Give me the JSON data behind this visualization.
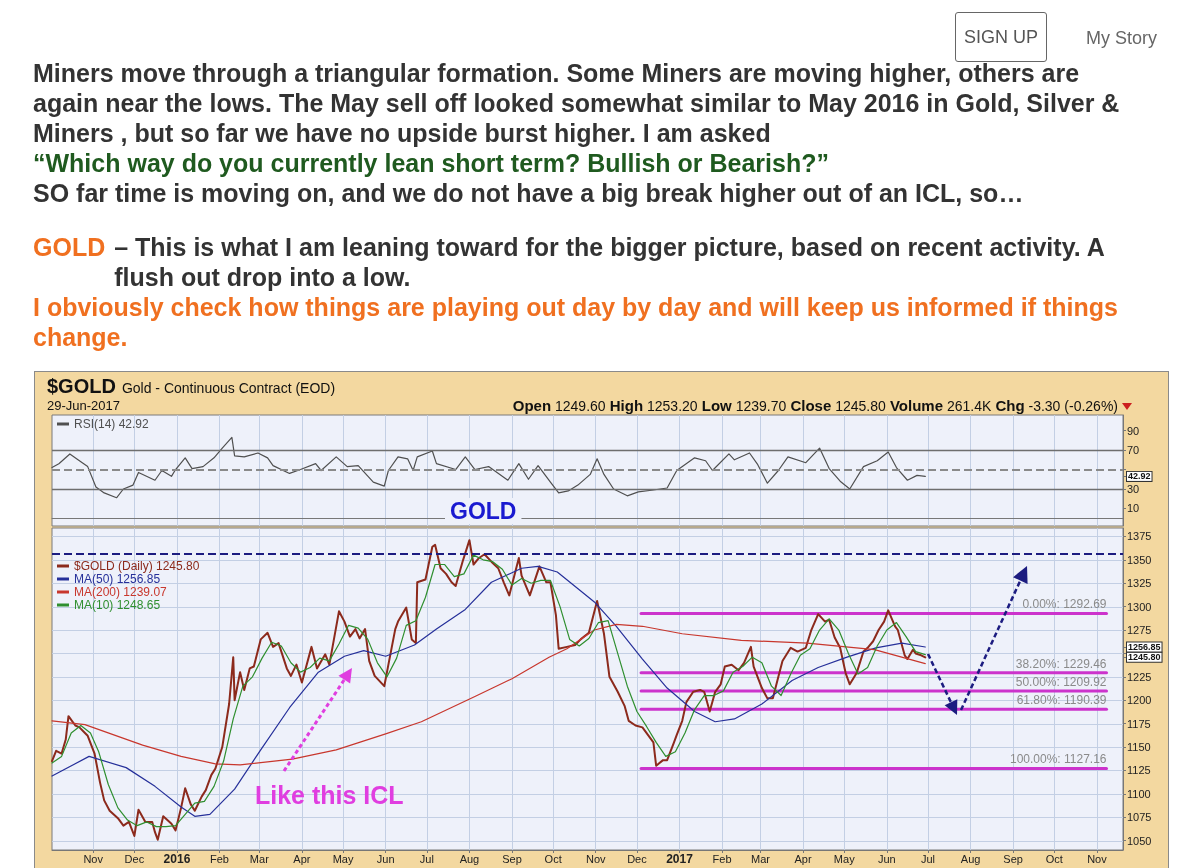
{
  "chart_data": [
    {
      "type": "line",
      "title": "$GOLD",
      "subtitle": "Gold - Continuous Contract (EOD)",
      "annotations": [
        "SIGN UP",
        "My Story",
        "Miners move through a triangular formation. Some Miners are moving higher, others are again near the lows. The May sell off looked somewhat similar to May 2016 in Gold, Silver & Miners , but so far we have no upside burst higher. I am asked",
        "“Which way do you currently lean short term? Bullish or Bearish?”",
        "SO far time is moving on, and we do not have a big break higher out of an ICL, so…",
        "GOLD",
        "– This is what I am leaning toward for the bigger picture, based on recent activity. A flush out drop into a low.",
        "I obviously check how things are playing out day by day and will keep us informed if things change.",
        "29-Jun-2017",
        "Open 1249.60 High 1253.20 Low 1239.70 Close 1245.80 Volume 261.4K Chg -3.30 (-0.26%)"
      ],
      "xlim": [
        "2015-10-02",
        "2017-11-20"
      ],
      "xticks": [
        {
          "value": "2015-11-01",
          "label": null
        },
        {
          "value": "2015-12-01",
          "label": null
        },
        {
          "value": "2016-01-01",
          "label": null
        },
        {
          "value": "2016-02-01",
          "label": null
        },
        {
          "value": "2016-03-01",
          "label": null
        },
        {
          "value": "2016-04-01",
          "label": null
        },
        {
          "value": "2016-05-01",
          "label": null
        },
        {
          "value": "2016-06-01",
          "label": null
        },
        {
          "value": "2016-07-01",
          "label": null
        },
        {
          "value": "2016-08-01",
          "label": null
        },
        {
          "value": "2016-09-01",
          "label": null
        },
        {
          "value": "2016-10-01",
          "label": null
        },
        {
          "value": "2016-11-01",
          "label": null
        },
        {
          "value": "2016-12-01",
          "label": null
        },
        {
          "value": "2017-01-01",
          "label": null
        },
        {
          "value": "2017-02-01",
          "label": null
        },
        {
          "value": "2017-03-01",
          "label": null
        },
        {
          "value": "2017-04-01",
          "label": null
        },
        {
          "value": "2017-05-01",
          "label": null
        },
        {
          "value": "2017-06-01",
          "label": null
        },
        {
          "value": "2017-07-01",
          "label": null
        },
        {
          "value": "2017-08-01",
          "label": null
        },
        {
          "value": "2017-09-01",
          "label": null
        },
        {
          "value": "2017-10-01",
          "label": null
        },
        {
          "value": "2017-11-01",
          "label": null
        }
      ],
      "ylim": [
        -8,
        106
      ],
      "yticks": [
        10,
        30,
        {
          "value": 42.92,
          "label": "42.92"
        },
        {
          "value": 50,
          "label": null
        },
        70,
        90
      ],
      "tick_labels": "y",
      "grid": "x",
      "legend": "top left",
      "marker": "none",
      "ref_lines": [
        {
          "axis": "y",
          "value": 70,
          "color": "#6e6e6e"
        },
        {
          "axis": "y",
          "value": 50,
          "color": "#8a8a8a",
          "line_style": "dashed"
        },
        {
          "axis": "y",
          "value": 30,
          "color": "#6e6e6e"
        }
      ],
      "series": [
        {
          "name": "RSI(14) 42.92",
          "color": "#505050",
          "x": [
            "2015-10-02",
            "2015-10-07",
            "2015-10-15",
            "2015-10-23",
            "2015-10-28",
            "2015-11-03",
            "2015-11-09",
            "2015-11-18",
            "2015-11-23",
            "2015-11-30",
            "2015-12-04",
            "2015-12-16",
            "2015-12-21",
            "2015-12-28",
            "2015-12-31",
            "2016-01-07",
            "2016-01-12",
            "2016-01-20",
            "2016-01-28",
            "2016-02-03",
            "2016-02-10",
            "2016-02-12",
            "2016-02-19",
            "2016-02-29",
            "2016-03-07",
            "2016-03-11",
            "2016-03-23",
            "2016-03-31",
            "2016-04-11",
            "2016-04-15",
            "2016-04-26",
            "2016-05-04",
            "2016-05-12",
            "2016-05-23",
            "2016-05-31",
            "2016-06-03",
            "2016-06-10",
            "2016-06-17",
            "2016-06-21",
            "2016-06-24",
            "2016-07-05",
            "2016-07-08",
            "2016-07-22",
            "2016-07-29",
            "2016-08-05",
            "2016-08-15",
            "2016-08-29",
            "2016-09-06",
            "2016-09-13",
            "2016-09-20",
            "2016-09-29",
            "2016-10-05",
            "2016-10-12",
            "2016-10-19",
            "2016-10-28",
            "2016-11-02",
            "2016-11-07",
            "2016-11-14",
            "2016-11-24",
            "2016-12-02",
            "2016-12-13",
            "2016-12-23",
            "2016-12-30",
            "2017-01-12",
            "2017-01-20",
            "2017-01-25",
            "2017-02-06",
            "2017-02-10",
            "2017-02-21",
            "2017-02-27",
            "2017-03-06",
            "2017-03-14",
            "2017-03-21",
            "2017-04-03",
            "2017-04-13",
            "2017-04-20",
            "2017-04-28",
            "2017-05-05",
            "2017-05-15",
            "2017-05-25",
            "2017-06-02",
            "2017-06-08",
            "2017-06-16",
            "2017-06-23",
            "2017-06-29"
          ],
          "values": [
            52,
            56,
            66,
            58,
            53,
            32,
            26,
            21,
            30,
            34,
            47,
            39,
            49,
            43,
            50,
            62,
            51,
            53,
            62,
            72,
            83,
            64,
            63,
            67,
            62,
            54,
            46,
            50,
            56,
            49,
            63,
            53,
            54,
            37,
            33,
            49,
            63,
            61,
            49,
            63,
            69,
            56,
            50,
            63,
            50,
            53,
            39,
            56,
            40,
            54,
            37,
            26,
            28,
            34,
            45,
            61,
            45,
            30,
            23,
            27,
            29,
            31,
            49,
            62,
            59,
            49,
            66,
            60,
            67,
            55,
            36,
            49,
            63,
            57,
            72,
            51,
            38,
            30,
            53,
            59,
            68,
            52,
            39,
            44,
            42.92
          ]
        }
      ]
    },
    {
      "type": "line",
      "title": "GOLD",
      "annotations": [
        "Like this ICL"
      ],
      "xlim": [
        "2015-10-02",
        "2017-11-20"
      ],
      "xticks": [
        {
          "value": "2015-11-01",
          "label": "Nov"
        },
        {
          "value": "2015-12-01",
          "label": "Dec"
        },
        {
          "value": "2016-01-01",
          "label": "2016"
        },
        {
          "value": "2016-02-01",
          "label": "Feb"
        },
        {
          "value": "2016-03-01",
          "label": "Mar"
        },
        {
          "value": "2016-04-01",
          "label": "Apr"
        },
        {
          "value": "2016-05-01",
          "label": "May"
        },
        {
          "value": "2016-06-01",
          "label": "Jun"
        },
        {
          "value": "2016-07-01",
          "label": "Jul"
        },
        {
          "value": "2016-08-01",
          "label": "Aug"
        },
        {
          "value": "2016-09-01",
          "label": "Sep"
        },
        {
          "value": "2016-10-01",
          "label": "Oct"
        },
        {
          "value": "2016-11-01",
          "label": "Nov"
        },
        {
          "value": "2016-12-01",
          "label": "Dec"
        },
        {
          "value": "2017-01-01",
          "label": "2017"
        },
        {
          "value": "2017-02-01",
          "label": "Feb"
        },
        {
          "value": "2017-03-01",
          "label": "Mar"
        },
        {
          "value": "2017-04-01",
          "label": "Apr"
        },
        {
          "value": "2017-05-01",
          "label": "May"
        },
        {
          "value": "2017-06-01",
          "label": "Jun"
        },
        {
          "value": "2017-07-01",
          "label": "Jul"
        },
        {
          "value": "2017-08-01",
          "label": "Aug"
        },
        {
          "value": "2017-09-01",
          "label": "Sep"
        },
        {
          "value": "2017-10-01",
          "label": "Oct"
        },
        {
          "value": "2017-11-01",
          "label": "Nov"
        }
      ],
      "ylim": [
        1040,
        1384
      ],
      "yticks": [
        1050,
        1075,
        1100,
        1125,
        1150,
        1175,
        1200,
        1225,
        {
          "value": 1245.8,
          "label": "1245.80"
        },
        {
          "value": 1250,
          "label": null
        },
        {
          "value": 1256.85,
          "label": "1256.85"
        },
        1275,
        1300,
        1325,
        1350,
        1375
      ],
      "grid": true,
      "legend": "top left",
      "marker": "none",
      "ref_lines": [
        {
          "axis": "y",
          "value": 1357,
          "color": "#1c1c80",
          "line_style": "dashed"
        }
      ],
      "series": [
        {
          "name": "$GOLD (Daily) 1245.80",
          "color": "#8c2a1c",
          "x": [
            "2015-10-02",
            "2015-10-05",
            "2015-10-09",
            "2015-10-12",
            "2015-10-14",
            "2015-10-19",
            "2015-10-22",
            "2015-10-26",
            "2015-10-28",
            "2015-11-02",
            "2015-11-06",
            "2015-11-09",
            "2015-11-13",
            "2015-11-19",
            "2015-11-23",
            "2015-11-27",
            "2015-12-01",
            "2015-12-04",
            "2015-12-09",
            "2015-12-14",
            "2015-12-16",
            "2015-12-18",
            "2015-12-22",
            "2015-12-28",
            "2015-12-31",
            "2016-01-04",
            "2016-01-07",
            "2016-01-11",
            "2016-01-14",
            "2016-01-19",
            "2016-01-22",
            "2016-01-26",
            "2016-01-29",
            "2016-02-03",
            "2016-02-08",
            "2016-02-11",
            "2016-02-12",
            "2016-02-16",
            "2016-02-19",
            "2016-02-23",
            "2016-02-26",
            "2016-03-02",
            "2016-03-07",
            "2016-03-11",
            "2016-03-15",
            "2016-03-21",
            "2016-03-24",
            "2016-03-28",
            "2016-04-01",
            "2016-04-08",
            "2016-04-12",
            "2016-04-18",
            "2016-04-21",
            "2016-04-28",
            "2016-05-02",
            "2016-05-06",
            "2016-05-10",
            "2016-05-13",
            "2016-05-17",
            "2016-05-20",
            "2016-05-24",
            "2016-05-31",
            "2016-06-03",
            "2016-06-08",
            "2016-06-10",
            "2016-06-16",
            "2016-06-20",
            "2016-06-23",
            "2016-06-24",
            "2016-06-30",
            "2016-07-05",
            "2016-07-07",
            "2016-07-11",
            "2016-07-15",
            "2016-07-19",
            "2016-07-22",
            "2016-07-27",
            "2016-08-01",
            "2016-08-04",
            "2016-08-08",
            "2016-08-12",
            "2016-08-17",
            "2016-08-22",
            "2016-08-26",
            "2016-08-30",
            "2016-09-06",
            "2016-09-08",
            "2016-09-14",
            "2016-09-21",
            "2016-09-26",
            "2016-09-29",
            "2016-10-03",
            "2016-10-05",
            "2016-10-11",
            "2016-10-17",
            "2016-10-21",
            "2016-10-27",
            "2016-11-02",
            "2016-11-07",
            "2016-11-11",
            "2016-11-17",
            "2016-11-22",
            "2016-11-25",
            "2016-11-30",
            "2016-12-05",
            "2016-12-09",
            "2016-12-13",
            "2016-12-15",
            "2016-12-20",
            "2016-12-23",
            "2016-12-28",
            "2016-12-30",
            "2017-01-03",
            "2017-01-06",
            "2017-01-11",
            "2017-01-16",
            "2017-01-19",
            "2017-01-23",
            "2017-01-27",
            "2017-01-31",
            "2017-02-03",
            "2017-02-08",
            "2017-02-13",
            "2017-02-17",
            "2017-02-22",
            "2017-02-24",
            "2017-03-02",
            "2017-03-06",
            "2017-03-10",
            "2017-03-14",
            "2017-03-17",
            "2017-03-23",
            "2017-03-28",
            "2017-04-03",
            "2017-04-07",
            "2017-04-12",
            "2017-04-17",
            "2017-04-20",
            "2017-04-24",
            "2017-04-28",
            "2017-05-02",
            "2017-05-05",
            "2017-05-10",
            "2017-05-15",
            "2017-05-18",
            "2017-05-22",
            "2017-05-26",
            "2017-05-30",
            "2017-06-02",
            "2017-06-07",
            "2017-06-09",
            "2017-06-14",
            "2017-06-16",
            "2017-06-20",
            "2017-06-22",
            "2017-06-26",
            "2017-06-29"
          ],
          "values": [
            1135,
            1146,
            1143,
            1158,
            1183,
            1173,
            1171,
            1165,
            1162,
            1143,
            1112,
            1093,
            1082,
            1074,
            1066,
            1070,
            1055,
            1083,
            1070,
            1070,
            1059,
            1051,
            1076,
            1068,
            1061,
            1085,
            1106,
            1089,
            1082,
            1097,
            1104,
            1120,
            1127,
            1150,
            1196,
            1246,
            1200,
            1230,
            1211,
            1234,
            1236,
            1265,
            1272,
            1257,
            1261,
            1234,
            1226,
            1238,
            1219,
            1257,
            1234,
            1249,
            1238,
            1295,
            1284,
            1268,
            1276,
            1266,
            1276,
            1242,
            1226,
            1215,
            1238,
            1276,
            1284,
            1299,
            1265,
            1261,
            1326,
            1329,
            1364,
            1366,
            1341,
            1335,
            1326,
            1322,
            1348,
            1371,
            1345,
            1352,
            1356,
            1348,
            1341,
            1326,
            1312,
            1352,
            1333,
            1312,
            1343,
            1326,
            1326,
            1291,
            1255,
            1257,
            1259,
            1265,
            1272,
            1306,
            1271,
            1225,
            1209,
            1194,
            1178,
            1173,
            1171,
            1163,
            1155,
            1130,
            1136,
            1136,
            1155,
            1163,
            1178,
            1198,
            1209,
            1211,
            1209,
            1188,
            1209,
            1217,
            1236,
            1238,
            1232,
            1240,
            1257,
            1236,
            1213,
            1202,
            1202,
            1225,
            1242,
            1256,
            1252,
            1256,
            1275,
            1292,
            1284,
            1286,
            1267,
            1256,
            1229,
            1217,
            1229,
            1252,
            1256,
            1263,
            1275,
            1284,
            1296,
            1279,
            1275,
            1248,
            1244,
            1254,
            1250,
            1248,
            1245.8
          ]
        },
        {
          "name": "MA(50) 1256.85",
          "color": "#26309a",
          "x": [
            "2015-10-02",
            "2015-10-29",
            "2015-11-25",
            "2015-12-16",
            "2016-01-04",
            "2016-01-14",
            "2016-01-25",
            "2016-02-12",
            "2016-03-02",
            "2016-03-23",
            "2016-04-13",
            "2016-05-02",
            "2016-05-16",
            "2016-06-01",
            "2016-06-22",
            "2016-07-08",
            "2016-07-29",
            "2016-08-17",
            "2016-09-08",
            "2016-09-20",
            "2016-10-04",
            "2016-10-31",
            "2016-11-16",
            "2016-12-05",
            "2016-12-23",
            "2017-01-12",
            "2017-01-27",
            "2017-02-10",
            "2017-03-02",
            "2017-03-24",
            "2017-04-12",
            "2017-05-03",
            "2017-05-24",
            "2017-06-12",
            "2017-06-29"
          ],
          "values": [
            1119,
            1140,
            1128,
            1108,
            1086,
            1076,
            1078,
            1105,
            1147,
            1192,
            1230,
            1247,
            1253,
            1247,
            1259,
            1276,
            1297,
            1326,
            1341,
            1343,
            1337,
            1305,
            1279,
            1244,
            1213,
            1188,
            1177,
            1180,
            1196,
            1221,
            1235,
            1246,
            1256,
            1261,
            1256.85
          ]
        },
        {
          "name": "MA(200) 1239.07",
          "color": "#c8372d",
          "x": [
            "2015-10-02",
            "2015-10-26",
            "2015-12-07",
            "2016-01-04",
            "2016-01-29",
            "2016-02-16",
            "2016-03-25",
            "2016-04-26",
            "2016-06-01",
            "2016-06-27",
            "2016-08-05",
            "2016-09-01",
            "2016-09-28",
            "2016-10-11",
            "2016-10-31",
            "2016-11-16",
            "2016-12-05",
            "2017-01-03",
            "2017-02-15",
            "2017-04-04",
            "2017-05-23",
            "2017-06-29"
          ],
          "values": [
            1178,
            1174,
            1152,
            1140,
            1132,
            1131,
            1137,
            1147,
            1164,
            1177,
            1204,
            1223,
            1246,
            1255,
            1275,
            1281,
            1279,
            1271,
            1264,
            1261,
            1254,
            1239.07
          ]
        },
        {
          "name": "MA(10) 1248.65",
          "color": "#2f8f2f",
          "x": [
            "2015-10-02",
            "2015-10-09",
            "2015-10-16",
            "2015-10-23",
            "2015-10-30",
            "2015-11-05",
            "2015-11-12",
            "2015-11-19",
            "2015-11-26",
            "2015-12-03",
            "2015-12-10",
            "2015-12-17",
            "2015-12-24",
            "2015-12-31",
            "2016-01-07",
            "2016-01-14",
            "2016-01-21",
            "2016-01-28",
            "2016-02-04",
            "2016-02-11",
            "2016-02-18",
            "2016-02-25",
            "2016-03-03",
            "2016-03-10",
            "2016-03-17",
            "2016-03-24",
            "2016-03-31",
            "2016-04-07",
            "2016-04-14",
            "2016-04-21",
            "2016-04-28",
            "2016-05-05",
            "2016-05-12",
            "2016-05-19",
            "2016-05-26",
            "2016-06-02",
            "2016-06-09",
            "2016-06-16",
            "2016-06-23",
            "2016-06-30",
            "2016-07-07",
            "2016-07-14",
            "2016-07-21",
            "2016-07-28",
            "2016-08-04",
            "2016-08-11",
            "2016-08-18",
            "2016-08-25",
            "2016-09-01",
            "2016-09-08",
            "2016-09-15",
            "2016-09-22",
            "2016-09-29",
            "2016-10-06",
            "2016-10-13",
            "2016-10-20",
            "2016-10-27",
            "2016-11-03",
            "2016-11-10",
            "2016-11-17",
            "2016-11-24",
            "2016-12-01",
            "2016-12-08",
            "2016-12-15",
            "2016-12-22",
            "2016-12-29",
            "2017-01-05",
            "2017-01-12",
            "2017-01-19",
            "2017-01-26",
            "2017-02-02",
            "2017-02-09",
            "2017-02-16",
            "2017-02-23",
            "2017-03-02",
            "2017-03-09",
            "2017-03-16",
            "2017-03-23",
            "2017-03-30",
            "2017-04-06",
            "2017-04-13",
            "2017-04-20",
            "2017-04-27",
            "2017-05-04",
            "2017-05-11",
            "2017-05-18",
            "2017-05-25",
            "2017-06-01",
            "2017-06-08",
            "2017-06-15",
            "2017-06-22",
            "2017-06-29"
          ],
          "values": [
            1133,
            1140,
            1165,
            1173,
            1165,
            1145,
            1110,
            1085,
            1072,
            1066,
            1070,
            1065,
            1065,
            1066,
            1078,
            1090,
            1092,
            1108,
            1135,
            1180,
            1215,
            1225,
            1245,
            1262,
            1258,
            1240,
            1230,
            1235,
            1245,
            1242,
            1260,
            1280,
            1277,
            1265,
            1240,
            1225,
            1245,
            1280,
            1285,
            1310,
            1345,
            1345,
            1332,
            1335,
            1355,
            1350,
            1348,
            1340,
            1323,
            1330,
            1325,
            1328,
            1328,
            1300,
            1265,
            1258,
            1266,
            1283,
            1285,
            1250,
            1215,
            1188,
            1172,
            1155,
            1140,
            1145,
            1165,
            1190,
            1205,
            1205,
            1210,
            1230,
            1236,
            1246,
            1240,
            1215,
            1205,
            1228,
            1248,
            1255,
            1275,
            1287,
            1275,
            1250,
            1228,
            1235,
            1258,
            1275,
            1283,
            1268,
            1252,
            1248.65
          ]
        },
        {
          "name": "0.00%: 1292.69",
          "color": "#cc33cc",
          "x": [
            "2016-12-04",
            "2017-11-08"
          ],
          "values": [
            1292.69,
            1292.69
          ]
        },
        {
          "name": "38.20%: 1229.46",
          "color": "#cc33cc",
          "x": [
            "2016-12-04",
            "2017-11-08"
          ],
          "values": [
            1229.46,
            1229.46
          ]
        },
        {
          "name": "50.00%: 1209.92",
          "color": "#cc33cc",
          "x": [
            "2016-12-04",
            "2017-11-08"
          ],
          "values": [
            1209.92,
            1209.92
          ]
        },
        {
          "name": "61.80%: 1190.39",
          "color": "#cc33cc",
          "x": [
            "2016-12-04",
            "2017-11-08"
          ],
          "values": [
            1190.39,
            1190.39
          ]
        },
        {
          "name": "100.00%: 1127.16",
          "color": "#cc33cc",
          "x": [
            "2016-12-04",
            "2017-11-08"
          ],
          "values": [
            1127.16,
            1127.16
          ]
        }
      ]
    }
  ]
}
